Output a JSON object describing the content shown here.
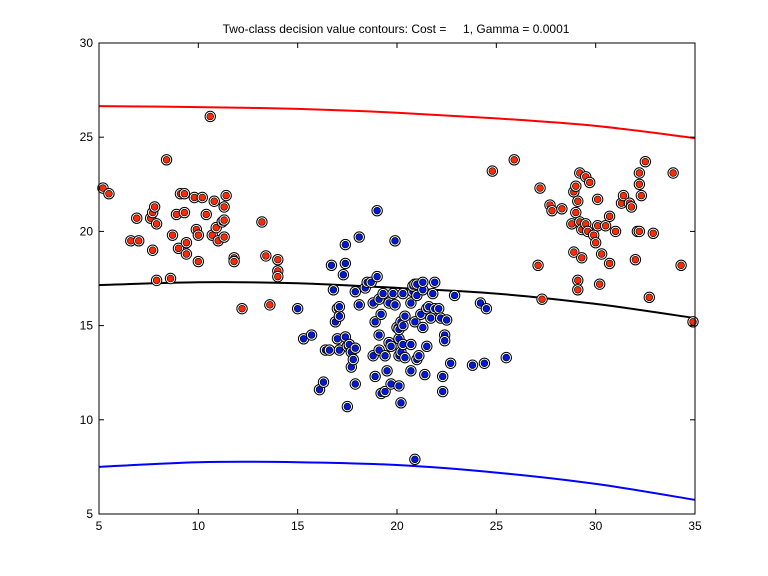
{
  "chart_data": {
    "type": "scatter",
    "title": "Two-class decision value contours: Cost =     1, Gamma = 0.0001",
    "xlabel": "",
    "ylabel": "",
    "xlim": [
      5,
      35
    ],
    "ylim": [
      5,
      30
    ],
    "xticks": [
      "5",
      "10",
      "15",
      "20",
      "25",
      "30",
      "35"
    ],
    "yticks": [
      "5",
      "10",
      "15",
      "20",
      "25",
      "30"
    ],
    "grid": false,
    "colors": {
      "red_class": "#ff2a00",
      "blue_class": "#0018d8",
      "upper_contour": "#ff0000",
      "decision_boundary": "#000000",
      "lower_contour": "#0000ff",
      "axes": "#000000",
      "background": "#ffffff"
    },
    "series": [
      {
        "color": "#ff2a00",
        "points": [
          [
            5.2,
            22.3
          ],
          [
            5.5,
            22.0
          ],
          [
            6.6,
            19.5
          ],
          [
            6.9,
            20.7
          ],
          [
            7.0,
            19.5
          ],
          [
            7.6,
            20.7
          ],
          [
            7.7,
            21.0
          ],
          [
            7.8,
            21.3
          ],
          [
            7.7,
            19.0
          ],
          [
            7.9,
            20.4
          ],
          [
            7.9,
            17.4
          ],
          [
            8.4,
            23.8
          ],
          [
            8.6,
            17.5
          ],
          [
            8.7,
            19.8
          ],
          [
            8.9,
            20.9
          ],
          [
            9.0,
            19.1
          ],
          [
            9.1,
            22.0
          ],
          [
            9.3,
            22.0
          ],
          [
            9.3,
            21.0
          ],
          [
            9.4,
            19.4
          ],
          [
            9.4,
            18.8
          ],
          [
            9.8,
            21.8
          ],
          [
            9.9,
            20.1
          ],
          [
            10.0,
            19.8
          ],
          [
            10.0,
            18.4
          ],
          [
            10.2,
            21.8
          ],
          [
            10.4,
            20.9
          ],
          [
            10.6,
            26.1
          ],
          [
            10.7,
            19.8
          ],
          [
            10.8,
            21.6
          ],
          [
            10.9,
            20.2
          ],
          [
            11.0,
            19.5
          ],
          [
            11.2,
            20.5
          ],
          [
            11.3,
            21.3
          ],
          [
            11.3,
            20.6
          ],
          [
            11.4,
            21.9
          ],
          [
            11.3,
            19.7
          ],
          [
            11.8,
            18.6
          ],
          [
            11.8,
            18.4
          ],
          [
            12.2,
            15.9
          ],
          [
            13.2,
            20.5
          ],
          [
            13.4,
            18.7
          ],
          [
            13.6,
            16.1
          ],
          [
            14.0,
            18.5
          ],
          [
            14.0,
            17.9
          ],
          [
            14.0,
            17.6
          ],
          [
            24.8,
            23.2
          ],
          [
            25.9,
            23.8
          ],
          [
            27.2,
            22.3
          ],
          [
            27.1,
            18.2
          ],
          [
            27.3,
            16.4
          ],
          [
            27.7,
            21.4
          ],
          [
            27.8,
            21.1
          ],
          [
            28.3,
            21.2
          ],
          [
            28.8,
            20.4
          ],
          [
            28.9,
            22.1
          ],
          [
            28.9,
            18.9
          ],
          [
            29.0,
            22.4
          ],
          [
            29.0,
            21.0
          ],
          [
            29.1,
            21.6
          ],
          [
            29.2,
            23.1
          ],
          [
            29.2,
            20.5
          ],
          [
            29.1,
            17.4
          ],
          [
            29.1,
            16.9
          ],
          [
            29.3,
            18.6
          ],
          [
            29.3,
            20.1
          ],
          [
            29.5,
            22.9
          ],
          [
            29.5,
            20.4
          ],
          [
            29.6,
            20.0
          ],
          [
            29.7,
            22.6
          ],
          [
            29.9,
            19.8
          ],
          [
            30.0,
            19.4
          ],
          [
            30.1,
            21.7
          ],
          [
            30.1,
            20.3
          ],
          [
            30.2,
            17.2
          ],
          [
            30.3,
            18.8
          ],
          [
            30.5,
            20.3
          ],
          [
            30.7,
            20.8
          ],
          [
            30.7,
            18.3
          ],
          [
            31.0,
            20.0
          ],
          [
            31.3,
            21.5
          ],
          [
            31.4,
            21.9
          ],
          [
            31.7,
            21.5
          ],
          [
            31.8,
            21.3
          ],
          [
            32.0,
            18.5
          ],
          [
            32.1,
            20.0
          ],
          [
            32.2,
            23.1
          ],
          [
            32.2,
            22.5
          ],
          [
            32.2,
            20.0
          ],
          [
            32.3,
            21.9
          ],
          [
            32.5,
            23.7
          ],
          [
            32.7,
            16.5
          ],
          [
            32.9,
            19.9
          ],
          [
            33.9,
            23.1
          ],
          [
            34.3,
            18.2
          ],
          [
            34.9,
            15.2
          ]
        ]
      },
      {
        "color": "#0018d8",
        "points": [
          [
            15.0,
            15.9
          ],
          [
            15.3,
            14.3
          ],
          [
            15.7,
            14.5
          ],
          [
            16.1,
            11.6
          ],
          [
            16.3,
            12.0
          ],
          [
            16.4,
            13.7
          ],
          [
            16.6,
            13.7
          ],
          [
            16.7,
            18.2
          ],
          [
            16.8,
            16.9
          ],
          [
            16.9,
            15.2
          ],
          [
            17.0,
            14.3
          ],
          [
            17.0,
            15.9
          ],
          [
            17.1,
            15.5
          ],
          [
            17.1,
            13.7
          ],
          [
            17.1,
            16.0
          ],
          [
            17.3,
            17.7
          ],
          [
            17.4,
            14.4
          ],
          [
            17.4,
            18.3
          ],
          [
            17.4,
            19.3
          ],
          [
            17.5,
            10.7
          ],
          [
            17.5,
            13.9
          ],
          [
            17.6,
            14.0
          ],
          [
            17.7,
            12.8
          ],
          [
            17.7,
            13.6
          ],
          [
            17.8,
            13.2
          ],
          [
            17.9,
            13.8
          ],
          [
            17.9,
            16.8
          ],
          [
            17.9,
            11.9
          ],
          [
            18.1,
            19.7
          ],
          [
            18.1,
            16.1
          ],
          [
            18.4,
            17.0
          ],
          [
            18.5,
            17.3
          ],
          [
            18.7,
            17.3
          ],
          [
            18.8,
            16.2
          ],
          [
            18.8,
            13.4
          ],
          [
            18.9,
            12.3
          ],
          [
            18.9,
            15.2
          ],
          [
            19.0,
            17.6
          ],
          [
            19.0,
            21.1
          ],
          [
            19.1,
            16.4
          ],
          [
            19.1,
            14.5
          ],
          [
            19.1,
            13.7
          ],
          [
            19.2,
            15.6
          ],
          [
            19.2,
            11.4
          ],
          [
            19.3,
            16.7
          ],
          [
            19.4,
            13.4
          ],
          [
            19.4,
            11.5
          ],
          [
            19.5,
            12.6
          ],
          [
            19.6,
            16.2
          ],
          [
            19.6,
            14.1
          ],
          [
            19.7,
            11.9
          ],
          [
            19.7,
            13.9
          ],
          [
            19.8,
            16.7
          ],
          [
            19.9,
            19.5
          ],
          [
            19.9,
            16.1
          ],
          [
            20.0,
            14.9
          ],
          [
            20.1,
            14.3
          ],
          [
            20.1,
            14.8
          ],
          [
            20.1,
            13.4
          ],
          [
            20.1,
            11.8
          ],
          [
            20.2,
            15.2
          ],
          [
            20.2,
            13.6
          ],
          [
            20.2,
            10.9
          ],
          [
            20.3,
            15.0
          ],
          [
            20.3,
            16.7
          ],
          [
            20.3,
            14.0
          ],
          [
            20.4,
            15.5
          ],
          [
            20.4,
            13.3
          ],
          [
            20.7,
            16.2
          ],
          [
            20.7,
            14.0
          ],
          [
            20.7,
            12.6
          ],
          [
            20.8,
            16.8
          ],
          [
            20.8,
            17.1
          ],
          [
            20.9,
            17.2
          ],
          [
            20.9,
            15.2
          ],
          [
            20.9,
            7.9
          ],
          [
            21.0,
            17.2
          ],
          [
            21.0,
            16.6
          ],
          [
            21.0,
            13.2
          ],
          [
            21.1,
            13.4
          ],
          [
            21.2,
            15.6
          ],
          [
            21.3,
            16.9
          ],
          [
            21.3,
            17.3
          ],
          [
            21.3,
            14.9
          ],
          [
            21.4,
            12.4
          ],
          [
            21.5,
            15.9
          ],
          [
            21.5,
            13.9
          ],
          [
            21.6,
            16.0
          ],
          [
            21.7,
            15.4
          ],
          [
            21.8,
            16.7
          ],
          [
            21.9,
            17.3
          ],
          [
            21.9,
            15.9
          ],
          [
            22.1,
            15.9
          ],
          [
            22.2,
            15.4
          ],
          [
            22.3,
            12.3
          ],
          [
            22.3,
            11.5
          ],
          [
            22.4,
            14.5
          ],
          [
            22.4,
            14.2
          ],
          [
            22.5,
            15.3
          ],
          [
            22.7,
            13.0
          ],
          [
            22.9,
            16.6
          ],
          [
            23.8,
            12.9
          ],
          [
            24.2,
            16.2
          ],
          [
            24.4,
            13.0
          ],
          [
            24.5,
            15.9
          ],
          [
            25.5,
            13.3
          ]
        ]
      }
    ],
    "contours": [
      {
        "color": "#ff0000",
        "x": [
          5,
          10,
          15,
          20,
          25,
          30,
          35
        ],
        "y": [
          26.65,
          26.6,
          26.5,
          26.3,
          26.0,
          25.6,
          24.95
        ]
      },
      {
        "color": "#000000",
        "x": [
          5,
          10,
          15,
          20,
          25,
          30,
          35
        ],
        "y": [
          17.15,
          17.3,
          17.25,
          17.0,
          16.7,
          16.15,
          15.4
        ]
      },
      {
        "color": "#0000ff",
        "x": [
          5,
          10,
          15,
          20,
          25,
          30,
          35
        ],
        "y": [
          7.5,
          7.75,
          7.75,
          7.6,
          7.2,
          6.6,
          5.75
        ]
      }
    ]
  }
}
